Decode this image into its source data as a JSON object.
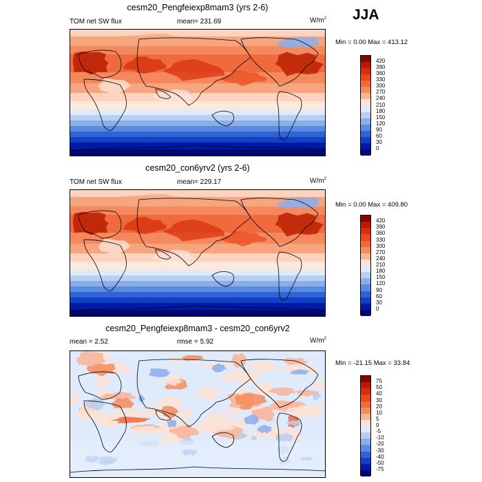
{
  "season": "JJA",
  "panels": [
    {
      "title": "cesm20_Pengfeiexp8mam3 (yrs 2-6)",
      "left_label": "TOM net SW flux",
      "mean_label": "mean= 231.69",
      "rmse_label": "",
      "units": "W/m",
      "units_sup": "2",
      "minmax": "Min =   0.00 Max = 413.12",
      "colorbar": {
        "levels": [
          "420",
          "390",
          "360",
          "330",
          "300",
          "270",
          "240",
          "210",
          "180",
          "150",
          "120",
          "90",
          "60",
          "30",
          "0"
        ],
        "colors": [
          "#8b0000",
          "#b71c00",
          "#d62f0b",
          "#e8491d",
          "#f06a3a",
          "#f68c5e",
          "#fab394",
          "#fde3d4",
          "#dfeafb",
          "#b6cff3",
          "#8aaeea",
          "#5a8be0",
          "#2f63d6",
          "#1040c6",
          "#0019a8",
          "#000a6e"
        ]
      }
    },
    {
      "title": "cesm20_con6yrv2 (yrs 2-6)",
      "left_label": "TOM net SW flux",
      "mean_label": "mean= 229.17",
      "rmse_label": "",
      "units": "W/m",
      "units_sup": "2",
      "minmax": "Min =   0.00 Max = 409.80",
      "colorbar": {
        "levels": [
          "420",
          "390",
          "360",
          "330",
          "300",
          "270",
          "240",
          "210",
          "180",
          "150",
          "120",
          "90",
          "60",
          "30",
          "0"
        ],
        "colors": [
          "#8b0000",
          "#b71c00",
          "#d62f0b",
          "#e8491d",
          "#f06a3a",
          "#f68c5e",
          "#fab394",
          "#fde3d4",
          "#dfeafb",
          "#b6cff3",
          "#8aaeea",
          "#5a8be0",
          "#2f63d6",
          "#1040c6",
          "#0019a8",
          "#000a6e"
        ]
      }
    },
    {
      "title": "cesm20_Pengfeiexp8mam3 - cesm20_con6yrv2",
      "left_label": "mean =   2.52",
      "mean_label": "",
      "rmse_label": "rmse =   5.92",
      "units": "W/m",
      "units_sup": "2",
      "minmax": "Min = -21.15 Max =  33.84",
      "colorbar": {
        "levels": [
          "75",
          "50",
          "40",
          "30",
          "20",
          "10",
          "5",
          "0",
          "-5",
          "-10",
          "-20",
          "-30",
          "-40",
          "-50",
          "-75"
        ],
        "colors": [
          "#8b0000",
          "#b71c00",
          "#d62f0b",
          "#e8491d",
          "#f06a3a",
          "#f68c5e",
          "#fab394",
          "#fde3d4",
          "#dfeafb",
          "#b6cff3",
          "#8aaeea",
          "#5a8be0",
          "#2f63d6",
          "#1040c6",
          "#0019a8",
          "#000a6e"
        ]
      }
    }
  ]
}
